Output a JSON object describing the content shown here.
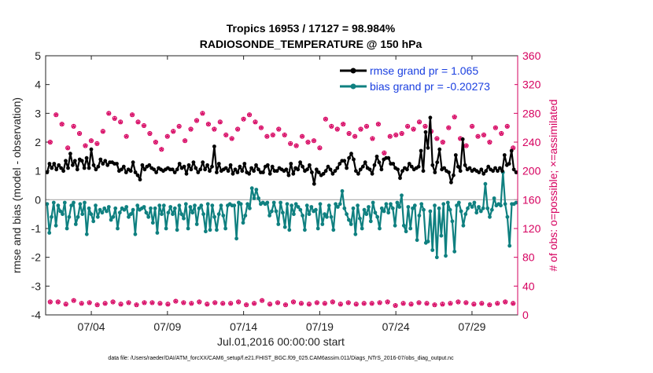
{
  "chart_data": {
    "type": "line",
    "title": "Tropics 16953 / 17127 = 98.984%",
    "subtitle": "RADIOSONDE_TEMPERATURE @ 150 hPa",
    "xlabel": "Jul.01,2016 00:00:00 start",
    "ylabel": "rmse and bias (model - observation)",
    "ylabel_right": "# of obs: o=possible; ×=assimilated",
    "ylim": [
      -4,
      5
    ],
    "ylim_right": [
      0,
      360
    ],
    "xlim": [
      1.0,
      32.0
    ],
    "x_ticks": [
      4,
      9,
      14,
      19,
      24,
      29
    ],
    "x_tick_labels": [
      "07/04",
      "07/09",
      "07/14",
      "07/19",
      "07/24",
      "07/29"
    ],
    "y_ticks": [
      "5",
      "4",
      "3",
      "2",
      "1",
      "0",
      "-1",
      "-2",
      "-3",
      "-4"
    ],
    "y_ticks_right": [
      "360",
      "320",
      "280",
      "240",
      "200",
      "160",
      "120",
      "80",
      "40",
      "0"
    ],
    "footnote": "data file: /Users/raeder/DAI/ATM_forcXX/CAM6_setup/f.e21.FHIST_BGC.f09_025.CAM6assim.011/Diags_NTrS_2016-07/obs_diag_output.nc",
    "legend": [
      "rmse grand pr = 1.065",
      "bias grand pr = -0.20273"
    ],
    "colors": {
      "rmse": "#000000",
      "bias": "#0f8080",
      "obs": "#d6005f",
      "legend_text": "#1a3fe0",
      "zero_line": "#aaaaaa"
    },
    "series": [
      {
        "name": "rmse",
        "values": [
          0.95,
          1.25,
          1.1,
          1.25,
          1.05,
          1.2,
          1.1,
          1.0,
          1.35,
          1.1,
          1.6,
          1.2,
          1.35,
          1.05,
          1.4,
          1.35,
          1.1,
          1.45,
          1.1,
          1.75,
          1.2,
          1.05,
          1.15,
          1.4,
          1.25,
          1.35,
          1.2,
          1.3,
          1.3,
          1.25,
          1.25,
          1.0,
          1.05,
          1.15,
          0.95,
          1.05,
          1.0,
          1.3,
          0.95,
          0.85,
          0.7,
          1.2,
          1.05,
          1.15,
          1.2,
          1.1,
          1.05,
          0.95,
          1.1,
          1.05,
          1.0,
          1.05,
          1.1,
          1.05,
          1.05,
          0.95,
          1.05,
          1.25,
          1.1,
          1.15,
          0.9,
          1.2,
          1.05,
          1.3,
          1.1,
          0.95,
          1.05,
          1.3,
          1.05,
          1.2,
          1.0,
          1.15,
          1.85,
          0.95,
          1.25,
          1.0,
          1.05,
          1.1,
          1.0,
          1.2,
          0.9,
          1.05,
          0.95,
          1.15,
          1.0,
          1.25,
          0.95,
          0.9,
          1.1,
          1.0,
          1.2,
          1.05,
          0.95,
          0.95,
          1.15,
          1.2,
          0.9,
          1.15,
          1.0,
          1.0,
          1.1,
          1.05,
          1.0,
          1.05,
          0.85,
          1.25,
          0.9,
          1.1,
          1.05,
          1.3,
          1.15,
          1.0,
          1.05,
          1.2,
          0.95,
          0.55,
          1.05,
          0.95,
          0.85,
          0.9,
          1.0,
          1.15,
          1.05,
          0.9,
          1.0,
          1.1,
          1.25,
          1.35,
          1.35,
          1.1,
          1.45,
          1.6,
          1.4,
          1.0,
          0.9,
          1.05,
          1.15,
          1.3,
          1.1,
          1.05,
          0.9,
          1.2,
          1.5,
          1.3,
          1.05,
          1.4,
          1.45,
          1.45,
          1.25,
          1.25,
          1.1,
          1.05,
          0.75,
          1.0,
          1.1,
          1.05,
          1.25,
          1.15,
          1.05,
          1.1,
          1.15,
          1.7,
          1.0,
          2.35,
          1.8,
          2.85,
          1.2,
          0.95,
          1.3,
          1.75,
          1.05,
          1.1,
          1.0,
          0.95,
          0.6,
          0.85,
          1.55,
          1.15,
          1.0,
          2.1,
          1.2,
          1.05,
          1.1,
          1.0,
          1.05,
          1.0,
          0.95,
          1.05,
          0.9,
          1.0,
          1.15,
          1.05,
          1.0,
          1.1,
          1.0,
          1.1,
          1.0,
          1.55,
          1.2,
          1.25,
          1.7,
          1.05,
          0.95
        ]
      },
      {
        "name": "bias",
        "values": [
          -0.15,
          -1.15,
          -0.6,
          -0.1,
          -0.9,
          -0.2,
          -0.4,
          -0.5,
          -0.1,
          -1.0,
          -0.6,
          -0.2,
          -0.1,
          -0.85,
          -0.6,
          -0.15,
          -0.5,
          -0.1,
          -1.2,
          -0.3,
          -0.5,
          -0.75,
          -0.2,
          -0.6,
          -0.35,
          -0.45,
          -0.3,
          -0.4,
          -0.25,
          -0.7,
          -0.6,
          -0.3,
          -1.0,
          -0.45,
          -0.3,
          -0.35,
          -0.25,
          -0.6,
          -0.5,
          -0.35,
          -1.2,
          -0.2,
          -0.35,
          -0.3,
          -0.25,
          -0.45,
          -0.6,
          -0.3,
          -0.8,
          -0.3,
          -1.15,
          -0.2,
          -0.5,
          -0.2,
          -1.0,
          -0.45,
          -0.25,
          -0.5,
          -0.3,
          -1.05,
          -0.2,
          -0.5,
          -0.65,
          -0.15,
          -1.0,
          -0.25,
          -0.45,
          -0.2,
          -0.85,
          -0.3,
          -0.2,
          -0.5,
          -1.1,
          -0.15,
          -1.05,
          -0.2,
          -0.6,
          -1.05,
          -0.5,
          -0.2,
          -0.55,
          -1.0,
          -0.2,
          -0.15,
          -0.2,
          -0.2,
          -1.35,
          -0.1,
          -0.15,
          -0.8,
          -0.55,
          -0.15,
          -0.3,
          0.4,
          0.05,
          0.35,
          0.05,
          -0.15,
          -0.1,
          -0.15,
          -0.1,
          -0.55,
          -0.4,
          -0.1,
          -0.4,
          -0.85,
          -0.1,
          -0.45,
          -0.95,
          -0.15,
          -1.05,
          -0.2,
          -0.5,
          -0.15,
          -0.25,
          -0.35,
          -0.55,
          -1.05,
          -0.2,
          -0.5,
          -0.25,
          -0.4,
          -0.35,
          -1.0,
          -0.15,
          -0.85,
          -0.5,
          -0.6,
          -0.2,
          -0.6,
          -1.05,
          -0.15,
          -0.25,
          -0.15,
          0.3,
          -0.3,
          -0.5,
          -0.7,
          -0.85,
          -0.3,
          -1.2,
          -0.2,
          -0.65,
          -1.0,
          -0.35,
          -0.5,
          -0.25,
          -0.75,
          -0.1,
          -0.45,
          -0.6,
          -1.0,
          -0.3,
          -0.4,
          -0.15,
          -0.45,
          -0.15,
          -0.3,
          -0.9,
          -0.1,
          -0.25,
          0.15,
          -0.9,
          -1.1,
          -0.25,
          -1.0,
          -0.3,
          -0.2,
          -1.4,
          -0.55,
          -0.15,
          -0.35,
          -1.5,
          -1.45,
          -0.4,
          -1.75,
          -0.2,
          -2.0,
          -0.3,
          -1.25,
          -0.15,
          -1.95,
          -0.1,
          -0.35,
          -0.75,
          -1.8,
          -0.2,
          -0.1,
          -0.4,
          -0.9,
          -0.5,
          -0.3,
          -0.15,
          -0.25,
          -0.1,
          -0.45,
          -0.25,
          -0.4,
          -0.3,
          0.55,
          -0.3,
          -0.6,
          -0.35,
          0.05,
          -0.2,
          -0.15,
          -0.2,
          0.95,
          -0.15,
          -0.6,
          -1.6,
          -0.15,
          -0.15,
          -0.1
        ]
      },
      {
        "name": "obs_possible_upper",
        "values": [
          240,
          278,
          265,
          232,
          262,
          252,
          235,
          242,
          238,
          255,
          280,
          273,
          268,
          248,
          278,
          268,
          263,
          252,
          240,
          230,
          248,
          255,
          262,
          242,
          258,
          270,
          280,
          265,
          258,
          268,
          250,
          245,
          258,
          272,
          278,
          268,
          260,
          248,
          250,
          258,
          250,
          238,
          235,
          248,
          240,
          242,
          232,
          272,
          262,
          258,
          265,
          252,
          248,
          258,
          262,
          245,
          265,
          225,
          248,
          250,
          252,
          262,
          258,
          268,
          262,
          255,
          245,
          240,
          260,
          275,
          245,
          235,
          262,
          248,
          250,
          240,
          260,
          252,
          262,
          232
        ]
      },
      {
        "name": "obs_possible_lower",
        "values": [
          18,
          18,
          15,
          20,
          16,
          17,
          14,
          16,
          18,
          15,
          17,
          14,
          17,
          17,
          16,
          15,
          19,
          17,
          16,
          18,
          15,
          17,
          16,
          16,
          18,
          14,
          16,
          20,
          15,
          17,
          14,
          18,
          16,
          15,
          17,
          16,
          18,
          15,
          17,
          15,
          16,
          16,
          17,
          18,
          13,
          16,
          15,
          17,
          16,
          14,
          15,
          16,
          18,
          17,
          15,
          16,
          14,
          16,
          18,
          16
        ]
      }
    ]
  }
}
